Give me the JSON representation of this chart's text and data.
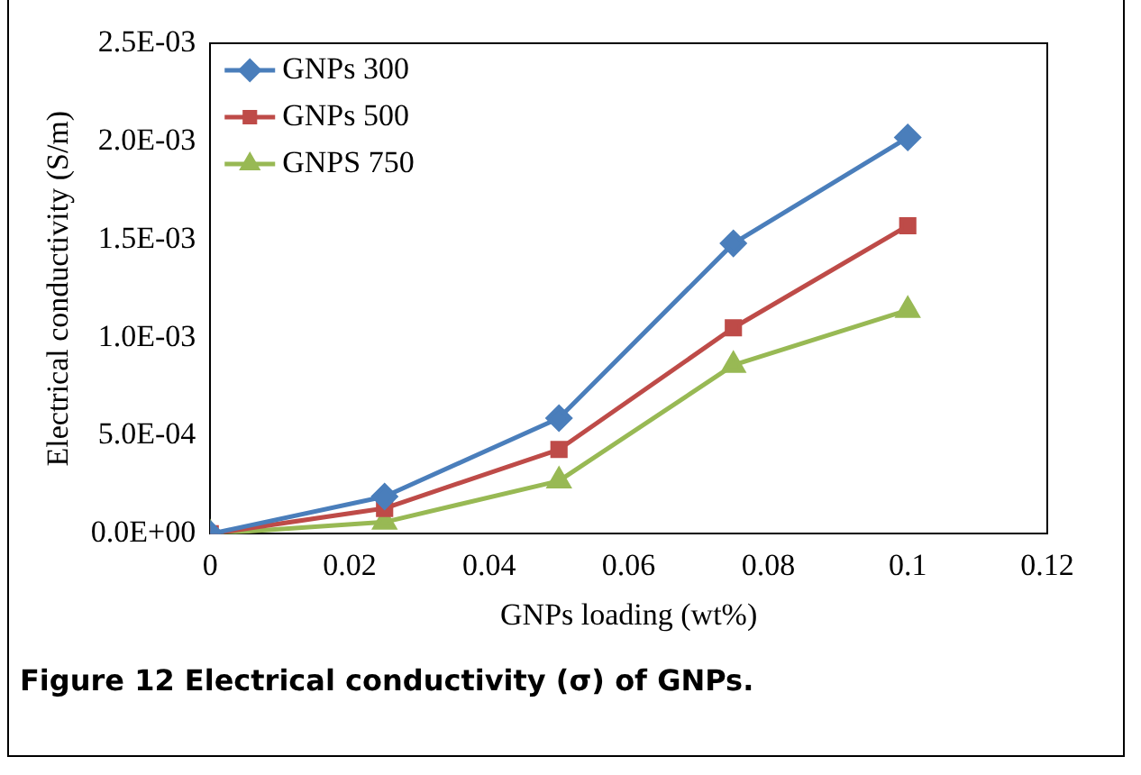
{
  "chart_data": {
    "type": "line",
    "xlabel": "GNPs loading (wt%)",
    "ylabel": "Electrical conductivity (S/m)",
    "x": [
      0,
      0.025,
      0.05,
      0.075,
      0.1
    ],
    "series": [
      {
        "name": "GNPs 300",
        "color": "#4a7ebb",
        "marker": "diamond",
        "values": [
          0,
          0.00019,
          0.00059,
          0.00148,
          0.00202
        ]
      },
      {
        "name": "GNPs 500",
        "color": "#be4b48",
        "marker": "square",
        "values": [
          0,
          0.00013,
          0.00043,
          0.00105,
          0.00157
        ]
      },
      {
        "name": "GNPS 750",
        "color": "#98b954",
        "marker": "triangle",
        "values": [
          0,
          6e-05,
          0.00027,
          0.00086,
          0.00114
        ]
      }
    ],
    "xlim": [
      0,
      0.12
    ],
    "xticks": [
      0,
      0.02,
      0.04,
      0.06,
      0.08,
      0.1,
      0.12
    ],
    "ylim": [
      0,
      0.0025
    ],
    "yticks": [
      {
        "value": 0,
        "label": "0.0E+00"
      },
      {
        "value": 0.0005,
        "label": "5.0E-04"
      },
      {
        "value": 0.001,
        "label": "1.0E-03"
      },
      {
        "value": 0.0015,
        "label": "1.5E-03"
      },
      {
        "value": 0.002,
        "label": "2.0E-03"
      },
      {
        "value": 0.0025,
        "label": "2.5E-03"
      }
    ],
    "grid": false,
    "legend": "top left",
    "annotations": [
      "Figure 12 Electrical conductivity (σ) of GNPs."
    ]
  }
}
